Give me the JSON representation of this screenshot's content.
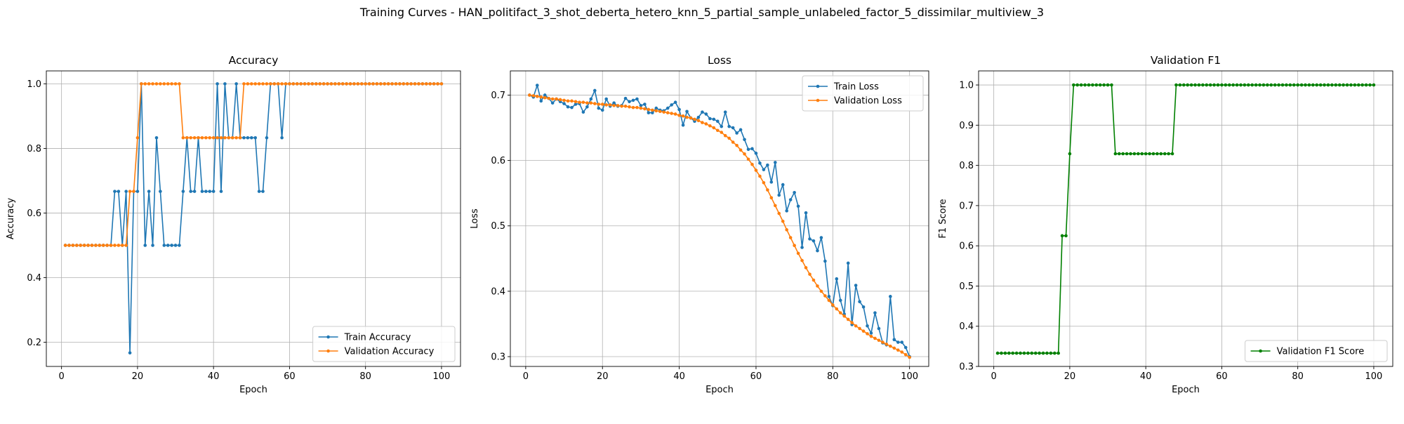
{
  "figure": {
    "title": "Training Curves - HAN_politifact_3_shot_deberta_hetero_knn_5_partial_sample_unlabeled_factor_5_dissimilar_multiview_3"
  },
  "colors": {
    "train": "#1f77b4",
    "validation": "#ff7f0e",
    "f1": "#008000",
    "grid": "#b0b0b0",
    "axes": "#000000"
  },
  "chart_data": [
    {
      "type": "line",
      "title": "Accuracy",
      "xlabel": "Epoch",
      "ylabel": "Accuracy",
      "xlim": [
        -4,
        105
      ],
      "ylim": [
        0.125,
        1.04
      ],
      "xticks": [
        0,
        20,
        40,
        60,
        80,
        100
      ],
      "yticks": [
        0.2,
        0.4,
        0.6,
        0.8,
        1.0
      ],
      "grid": true,
      "legend": "lower right",
      "x": [
        1,
        2,
        3,
        4,
        5,
        6,
        7,
        8,
        9,
        10,
        11,
        12,
        13,
        14,
        15,
        16,
        17,
        18,
        19,
        20,
        21,
        22,
        23,
        24,
        25,
        26,
        27,
        28,
        29,
        30,
        31,
        32,
        33,
        34,
        35,
        36,
        37,
        38,
        39,
        40,
        41,
        42,
        43,
        44,
        45,
        46,
        47,
        48,
        49,
        50,
        51,
        52,
        53,
        54,
        55,
        56,
        57,
        58,
        59,
        60,
        61,
        62,
        63,
        64,
        65,
        66,
        67,
        68,
        69,
        70,
        71,
        72,
        73,
        74,
        75,
        76,
        77,
        78,
        79,
        80,
        81,
        82,
        83,
        84,
        85,
        86,
        87,
        88,
        89,
        90,
        91,
        92,
        93,
        94,
        95,
        96,
        97,
        98,
        99,
        100
      ],
      "series": [
        {
          "name": "Train Accuracy",
          "color": "#1f77b4",
          "values": [
            0.5,
            0.5,
            0.5,
            0.5,
            0.5,
            0.5,
            0.5,
            0.5,
            0.5,
            0.5,
            0.5,
            0.5,
            0.5,
            0.667,
            0.667,
            0.5,
            0.667,
            0.167,
            0.667,
            0.667,
            1.0,
            0.5,
            0.667,
            0.5,
            0.833,
            0.667,
            0.5,
            0.5,
            0.5,
            0.5,
            0.5,
            0.667,
            0.833,
            0.667,
            0.667,
            0.833,
            0.667,
            0.667,
            0.667,
            0.667,
            1.0,
            0.667,
            1.0,
            0.833,
            0.833,
            1.0,
            0.833,
            0.833,
            0.833,
            0.833,
            0.833,
            0.667,
            0.667,
            0.833,
            1.0,
            1.0,
            1.0,
            0.833,
            1.0,
            1.0,
            1.0,
            1.0,
            1.0,
            1.0,
            1.0,
            1.0,
            1.0,
            1.0,
            1.0,
            1.0,
            1.0,
            1.0,
            1.0,
            1.0,
            1.0,
            1.0,
            1.0,
            1.0,
            1.0,
            1.0,
            1.0,
            1.0,
            1.0,
            1.0,
            1.0,
            1.0,
            1.0,
            1.0,
            1.0,
            1.0,
            1.0,
            1.0,
            1.0,
            1.0,
            1.0,
            1.0,
            1.0,
            1.0,
            1.0,
            1.0
          ]
        },
        {
          "name": "Validation Accuracy",
          "color": "#ff7f0e",
          "values": [
            0.5,
            0.5,
            0.5,
            0.5,
            0.5,
            0.5,
            0.5,
            0.5,
            0.5,
            0.5,
            0.5,
            0.5,
            0.5,
            0.5,
            0.5,
            0.5,
            0.5,
            0.667,
            0.667,
            0.833,
            1.0,
            1.0,
            1.0,
            1.0,
            1.0,
            1.0,
            1.0,
            1.0,
            1.0,
            1.0,
            1.0,
            0.833,
            0.833,
            0.833,
            0.833,
            0.833,
            0.833,
            0.833,
            0.833,
            0.833,
            0.833,
            0.833,
            0.833,
            0.833,
            0.833,
            0.833,
            0.833,
            1.0,
            1.0,
            1.0,
            1.0,
            1.0,
            1.0,
            1.0,
            1.0,
            1.0,
            1.0,
            1.0,
            1.0,
            1.0,
            1.0,
            1.0,
            1.0,
            1.0,
            1.0,
            1.0,
            1.0,
            1.0,
            1.0,
            1.0,
            1.0,
            1.0,
            1.0,
            1.0,
            1.0,
            1.0,
            1.0,
            1.0,
            1.0,
            1.0,
            1.0,
            1.0,
            1.0,
            1.0,
            1.0,
            1.0,
            1.0,
            1.0,
            1.0,
            1.0,
            1.0,
            1.0,
            1.0,
            1.0,
            1.0,
            1.0,
            1.0,
            1.0,
            1.0,
            1.0
          ]
        }
      ]
    },
    {
      "type": "line",
      "title": "Loss",
      "xlabel": "Epoch",
      "ylabel": "Loss",
      "xlim": [
        -4,
        105
      ],
      "ylim": [
        0.285,
        0.737
      ],
      "xticks": [
        0,
        20,
        40,
        60,
        80,
        100
      ],
      "yticks": [
        0.3,
        0.4,
        0.5,
        0.6,
        0.7
      ],
      "grid": true,
      "legend": "upper right",
      "x": [
        1,
        2,
        3,
        4,
        5,
        6,
        7,
        8,
        9,
        10,
        11,
        12,
        13,
        14,
        15,
        16,
        17,
        18,
        19,
        20,
        21,
        22,
        23,
        24,
        25,
        26,
        27,
        28,
        29,
        30,
        31,
        32,
        33,
        34,
        35,
        36,
        37,
        38,
        39,
        40,
        41,
        42,
        43,
        44,
        45,
        46,
        47,
        48,
        49,
        50,
        51,
        52,
        53,
        54,
        55,
        56,
        57,
        58,
        59,
        60,
        61,
        62,
        63,
        64,
        65,
        66,
        67,
        68,
        69,
        70,
        71,
        72,
        73,
        74,
        75,
        76,
        77,
        78,
        79,
        80,
        81,
        82,
        83,
        84,
        85,
        86,
        87,
        88,
        89,
        90,
        91,
        92,
        93,
        94,
        95,
        96,
        97,
        98,
        99,
        100
      ],
      "series": [
        {
          "name": "Train Loss",
          "color": "#1f77b4",
          "values": [
            0.7,
            0.697,
            0.715,
            0.691,
            0.7,
            0.695,
            0.688,
            0.694,
            0.69,
            0.687,
            0.682,
            0.681,
            0.686,
            0.687,
            0.674,
            0.682,
            0.694,
            0.707,
            0.68,
            0.677,
            0.694,
            0.683,
            0.688,
            0.683,
            0.684,
            0.695,
            0.69,
            0.692,
            0.694,
            0.684,
            0.686,
            0.673,
            0.673,
            0.68,
            0.677,
            0.676,
            0.68,
            0.685,
            0.689,
            0.678,
            0.654,
            0.675,
            0.665,
            0.66,
            0.666,
            0.674,
            0.671,
            0.664,
            0.663,
            0.66,
            0.652,
            0.674,
            0.652,
            0.65,
            0.642,
            0.647,
            0.632,
            0.617,
            0.618,
            0.611,
            0.596,
            0.586,
            0.593,
            0.567,
            0.597,
            0.547,
            0.563,
            0.523,
            0.54,
            0.551,
            0.53,
            0.467,
            0.52,
            0.48,
            0.477,
            0.462,
            0.482,
            0.446,
            0.392,
            0.378,
            0.419,
            0.386,
            0.365,
            0.443,
            0.349,
            0.409,
            0.384,
            0.376,
            0.347,
            0.336,
            0.367,
            0.343,
            0.321,
            0.318,
            0.392,
            0.326,
            0.322,
            0.322,
            0.314,
            0.3
          ]
        },
        {
          "name": "Validation Loss",
          "color": "#ff7f0e",
          "values": [
            0.7,
            0.699,
            0.698,
            0.697,
            0.696,
            0.695,
            0.694,
            0.694,
            0.693,
            0.692,
            0.691,
            0.691,
            0.69,
            0.689,
            0.689,
            0.688,
            0.688,
            0.687,
            0.686,
            0.686,
            0.685,
            0.685,
            0.684,
            0.684,
            0.683,
            0.683,
            0.682,
            0.681,
            0.681,
            0.68,
            0.679,
            0.678,
            0.677,
            0.676,
            0.675,
            0.674,
            0.673,
            0.672,
            0.671,
            0.669,
            0.668,
            0.666,
            0.665,
            0.663,
            0.661,
            0.658,
            0.656,
            0.653,
            0.65,
            0.646,
            0.643,
            0.638,
            0.634,
            0.628,
            0.623,
            0.616,
            0.61,
            0.602,
            0.594,
            0.585,
            0.576,
            0.566,
            0.555,
            0.543,
            0.531,
            0.519,
            0.507,
            0.494,
            0.482,
            0.47,
            0.458,
            0.447,
            0.436,
            0.426,
            0.417,
            0.408,
            0.4,
            0.393,
            0.386,
            0.379,
            0.373,
            0.367,
            0.362,
            0.357,
            0.352,
            0.347,
            0.343,
            0.339,
            0.335,
            0.331,
            0.328,
            0.325,
            0.322,
            0.319,
            0.316,
            0.313,
            0.31,
            0.307,
            0.303,
            0.299
          ]
        }
      ]
    },
    {
      "type": "line",
      "title": "Validation F1",
      "xlabel": "Epoch",
      "ylabel": "F1 Score",
      "xlim": [
        -4,
        105
      ],
      "ylim": [
        0.3,
        1.035
      ],
      "xticks": [
        0,
        20,
        40,
        60,
        80,
        100
      ],
      "yticks": [
        0.3,
        0.4,
        0.5,
        0.6,
        0.7,
        0.8,
        0.9,
        1.0
      ],
      "grid": true,
      "legend": "lower right",
      "x": [
        1,
        2,
        3,
        4,
        5,
        6,
        7,
        8,
        9,
        10,
        11,
        12,
        13,
        14,
        15,
        16,
        17,
        18,
        19,
        20,
        21,
        22,
        23,
        24,
        25,
        26,
        27,
        28,
        29,
        30,
        31,
        32,
        33,
        34,
        35,
        36,
        37,
        38,
        39,
        40,
        41,
        42,
        43,
        44,
        45,
        46,
        47,
        48,
        49,
        50,
        51,
        52,
        53,
        54,
        55,
        56,
        57,
        58,
        59,
        60,
        61,
        62,
        63,
        64,
        65,
        66,
        67,
        68,
        69,
        70,
        71,
        72,
        73,
        74,
        75,
        76,
        77,
        78,
        79,
        80,
        81,
        82,
        83,
        84,
        85,
        86,
        87,
        88,
        89,
        90,
        91,
        92,
        93,
        94,
        95,
        96,
        97,
        98,
        99,
        100
      ],
      "series": [
        {
          "name": "Validation F1 Score",
          "color": "#008000",
          "values": [
            0.333,
            0.333,
            0.333,
            0.333,
            0.333,
            0.333,
            0.333,
            0.333,
            0.333,
            0.333,
            0.333,
            0.333,
            0.333,
            0.333,
            0.333,
            0.333,
            0.333,
            0.625,
            0.625,
            0.829,
            1.0,
            1.0,
            1.0,
            1.0,
            1.0,
            1.0,
            1.0,
            1.0,
            1.0,
            1.0,
            1.0,
            0.829,
            0.829,
            0.829,
            0.829,
            0.829,
            0.829,
            0.829,
            0.829,
            0.829,
            0.829,
            0.829,
            0.829,
            0.829,
            0.829,
            0.829,
            0.829,
            1.0,
            1.0,
            1.0,
            1.0,
            1.0,
            1.0,
            1.0,
            1.0,
            1.0,
            1.0,
            1.0,
            1.0,
            1.0,
            1.0,
            1.0,
            1.0,
            1.0,
            1.0,
            1.0,
            1.0,
            1.0,
            1.0,
            1.0,
            1.0,
            1.0,
            1.0,
            1.0,
            1.0,
            1.0,
            1.0,
            1.0,
            1.0,
            1.0,
            1.0,
            1.0,
            1.0,
            1.0,
            1.0,
            1.0,
            1.0,
            1.0,
            1.0,
            1.0,
            1.0,
            1.0,
            1.0,
            1.0,
            1.0,
            1.0,
            1.0,
            1.0,
            1.0,
            1.0
          ]
        }
      ]
    }
  ]
}
